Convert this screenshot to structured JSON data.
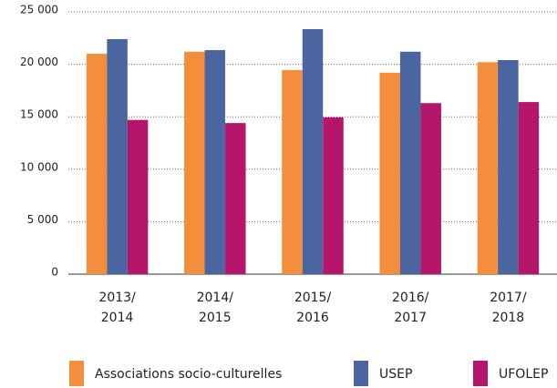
{
  "chart_data": {
    "type": "bar",
    "categories": [
      "2013/\n2014",
      "2014/\n2015",
      "2015/\n2016",
      "2016/\n2017",
      "2017/\n2018"
    ],
    "series": [
      {
        "name": "Associations socio-culturelles",
        "color": "#f28e3c",
        "values": [
          21000,
          21200,
          19450,
          19200,
          20200
        ]
      },
      {
        "name": "USEP",
        "color": "#4a65a0",
        "values": [
          22400,
          21350,
          23350,
          21200,
          20400
        ]
      },
      {
        "name": "UFOLEP",
        "color": "#b5166b",
        "values": [
          14700,
          14400,
          14950,
          16300,
          16400
        ]
      }
    ],
    "ylim": [
      0,
      25000
    ],
    "yticks": [
      0,
      {
        "value": 5000,
        "label": "5 000"
      },
      {
        "value": 10000,
        "label": "10 000"
      },
      {
        "value": 15000,
        "label": "15 000"
      },
      {
        "value": 20000,
        "label": "20 000"
      },
      {
        "value": 25000,
        "label": "25 000"
      }
    ],
    "grid": true
  }
}
